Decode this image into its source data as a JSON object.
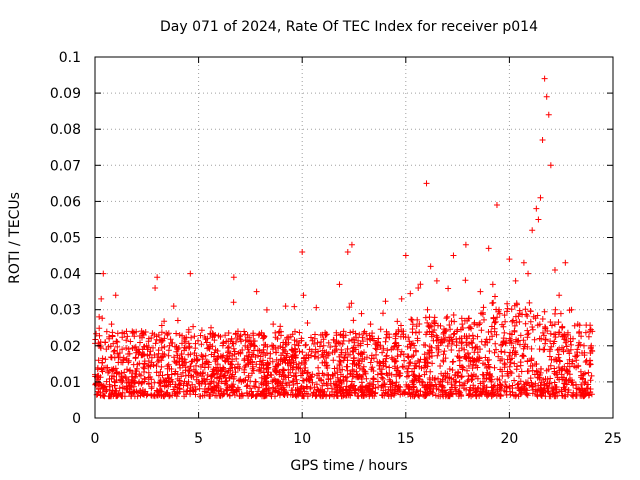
{
  "chart_data": {
    "type": "scatter",
    "title": "Day 071 of 2024, Rate Of TEC Index for receiver p014",
    "xlabel": "GPS time / hours",
    "ylabel": "ROTI / TECUs",
    "xlim": [
      0,
      25
    ],
    "ylim": [
      0,
      0.1
    ],
    "x_ticks": [
      0,
      5,
      10,
      15,
      20,
      25
    ],
    "x_tick_labels": [
      "0",
      "5",
      "10",
      "15",
      "20",
      "25"
    ],
    "y_ticks": [
      0,
      0.01,
      0.02,
      0.03,
      0.04,
      0.05,
      0.06,
      0.07,
      0.08,
      0.09,
      0.1
    ],
    "y_tick_labels": [
      "0",
      "0.01",
      "0.02",
      "0.03",
      "0.04",
      "0.05",
      "0.06",
      "0.07",
      "0.08",
      "0.09",
      "0.1"
    ],
    "grid": true,
    "marker": "+",
    "color": "#ff0000",
    "series": [
      {
        "name": "ROTI",
        "x": [
          0.0,
          0.1,
          0.2,
          0.3,
          0.4,
          0.5,
          0.6,
          0.8,
          1.0,
          1.2,
          1.5,
          1.8,
          2.0,
          2.3,
          2.6,
          2.9,
          3.0,
          3.2,
          3.5,
          3.8,
          4.0,
          4.3,
          4.6,
          4.8,
          5.0,
          5.3,
          5.6,
          5.9,
          6.2,
          6.5,
          6.7,
          6.9,
          7.2,
          7.5,
          7.8,
          8.0,
          8.3,
          8.6,
          8.9,
          9.2,
          9.5,
          9.8,
          10.0,
          10.3,
          10.6,
          10.9,
          11.2,
          11.5,
          11.8,
          12.0,
          12.2,
          12.4,
          12.7,
          13.0,
          13.3,
          13.6,
          13.9,
          14.2,
          14.5,
          14.8,
          15.0,
          15.3,
          15.6,
          15.9,
          16.0,
          16.2,
          16.5,
          16.8,
          17.0,
          17.3,
          17.6,
          17.9,
          18.0,
          18.3,
          18.6,
          18.9,
          19.0,
          19.2,
          19.4,
          19.5,
          19.7,
          20.0,
          20.3,
          20.5,
          20.7,
          20.9,
          21.1,
          21.3,
          21.4,
          21.5,
          21.6,
          21.7,
          21.8,
          21.9,
          22.0,
          22.2,
          22.4,
          22.7,
          23.0,
          23.3,
          23.6,
          23.9
        ],
        "y": [
          0.012,
          0.009,
          0.028,
          0.033,
          0.04,
          0.021,
          0.014,
          0.026,
          0.034,
          0.018,
          0.011,
          0.024,
          0.013,
          0.019,
          0.022,
          0.036,
          0.039,
          0.016,
          0.012,
          0.031,
          0.027,
          0.015,
          0.04,
          0.018,
          0.01,
          0.014,
          0.025,
          0.013,
          0.021,
          0.011,
          0.039,
          0.024,
          0.016,
          0.02,
          0.035,
          0.013,
          0.018,
          0.026,
          0.012,
          0.031,
          0.019,
          0.014,
          0.046,
          0.011,
          0.017,
          0.023,
          0.012,
          0.016,
          0.037,
          0.024,
          0.046,
          0.048,
          0.016,
          0.013,
          0.026,
          0.019,
          0.029,
          0.014,
          0.022,
          0.033,
          0.045,
          0.017,
          0.036,
          0.012,
          0.065,
          0.042,
          0.038,
          0.016,
          0.028,
          0.045,
          0.022,
          0.048,
          0.018,
          0.026,
          0.035,
          0.012,
          0.047,
          0.037,
          0.059,
          0.03,
          0.021,
          0.044,
          0.038,
          0.029,
          0.043,
          0.04,
          0.052,
          0.058,
          0.055,
          0.061,
          0.077,
          0.094,
          0.089,
          0.084,
          0.07,
          0.041,
          0.034,
          0.043,
          0.03,
          0.026,
          0.02,
          0.015
        ]
      }
    ]
  }
}
